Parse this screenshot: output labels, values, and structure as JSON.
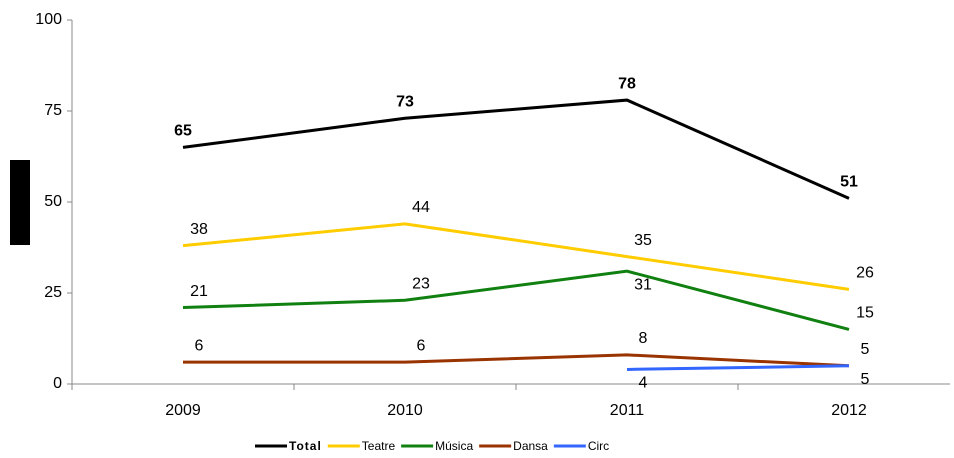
{
  "chart_data": {
    "type": "line",
    "categories": [
      "2009",
      "2010",
      "2011",
      "2012"
    ],
    "series": [
      {
        "name": "Total",
        "color": "#000000",
        "values": [
          65,
          73,
          78,
          51
        ]
      },
      {
        "name": "Teatre",
        "color": "#ffcc00",
        "values": [
          38,
          44,
          35,
          26
        ]
      },
      {
        "name": "Música",
        "color": "#108010",
        "values": [
          21,
          23,
          31,
          15
        ]
      },
      {
        "name": "Dansa",
        "color": "#993300",
        "values": [
          6,
          6,
          8,
          5
        ]
      },
      {
        "name": "Circ",
        "color": "#3366ff",
        "values": [
          null,
          null,
          4,
          5
        ]
      }
    ],
    "ylim": [
      0,
      100
    ],
    "yticks": [
      0,
      25,
      50,
      75,
      100
    ],
    "legend": "bottom"
  }
}
